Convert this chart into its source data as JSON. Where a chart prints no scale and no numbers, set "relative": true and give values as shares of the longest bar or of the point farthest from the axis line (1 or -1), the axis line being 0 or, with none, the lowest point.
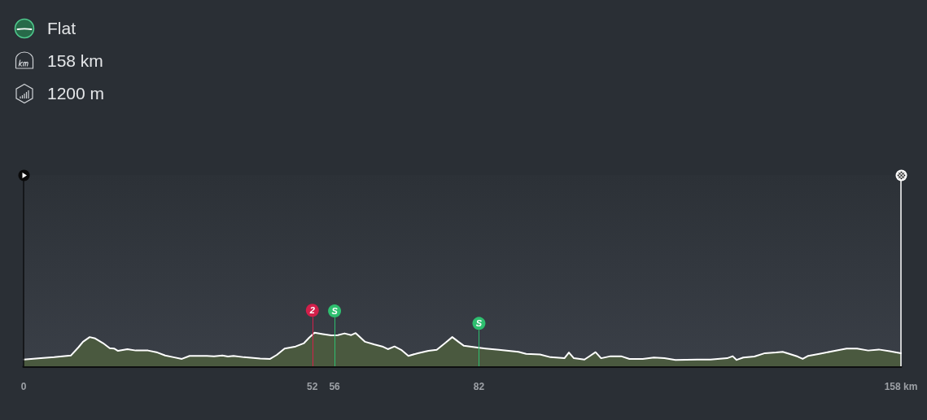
{
  "chart_data": {
    "type": "area",
    "relative": true,
    "x": [
      0,
      3.1,
      5.5,
      8.5,
      9.9,
      10.7,
      11.9,
      12.9,
      14.3,
      15.5,
      16.3,
      17.0,
      18.7,
      20.2,
      22.4,
      24.1,
      25.5,
      27.0,
      28.5,
      29.9,
      32.9,
      34.3,
      35.8,
      36.8,
      37.8,
      39.7,
      42.6,
      44.4,
      45.6,
      47.0,
      49.0,
      50.5,
      51.4,
      52.4,
      53.9,
      55.4,
      56.6,
      57.8,
      59.0,
      59.8,
      61.5,
      63.2,
      64.6,
      65.6,
      66.8,
      68.0,
      69.3,
      71.0,
      72.9,
      74.4,
      75.9,
      77.2,
      78.3,
      79.3,
      81.2,
      83.2,
      85.6,
      89.1,
      90.5,
      93.0,
      94.9,
      97.4,
      98.2,
      99.1,
      101.0,
      102.0,
      103.0,
      104.0,
      105.7,
      107.6,
      109.1,
      111.5,
      113.5,
      115.4,
      117.4,
      121.3,
      123.7,
      126.7,
      127.7,
      128.4,
      129.6,
      131.6,
      133.5,
      135.5,
      136.7,
      137.9,
      139.4,
      140.3,
      141.3,
      143.3,
      145.7,
      148.2,
      150.1,
      152.1,
      154.0,
      156.0,
      158
    ],
    "values": [
      0.2,
      0.24,
      0.27,
      0.32,
      0.57,
      0.73,
      0.87,
      0.83,
      0.69,
      0.54,
      0.53,
      0.46,
      0.51,
      0.47,
      0.47,
      0.41,
      0.32,
      0.27,
      0.22,
      0.31,
      0.31,
      0.3,
      0.32,
      0.29,
      0.31,
      0.27,
      0.23,
      0.22,
      0.34,
      0.53,
      0.59,
      0.69,
      0.85,
      1,
      0.96,
      0.92,
      0.93,
      0.98,
      0.93,
      0.99,
      0.73,
      0.65,
      0.59,
      0.51,
      0.59,
      0.49,
      0.31,
      0.39,
      0.46,
      0.49,
      0.69,
      0.87,
      0.73,
      0.61,
      0.57,
      0.53,
      0.49,
      0.43,
      0.37,
      0.35,
      0.27,
      0.24,
      0.41,
      0.24,
      0.2,
      0.31,
      0.42,
      0.24,
      0.3,
      0.3,
      0.22,
      0.22,
      0.26,
      0.24,
      0.19,
      0.2,
      0.2,
      0.24,
      0.3,
      0.19,
      0.26,
      0.29,
      0.39,
      0.41,
      0.43,
      0.37,
      0.29,
      0.22,
      0.31,
      0.37,
      0.45,
      0.53,
      0.53,
      0.47,
      0.5,
      0.45,
      0.39
    ],
    "color": "#4a593f",
    "marker": "none",
    "xlim": [
      0,
      158
    ],
    "xticks": [
      0,
      52,
      56,
      82,
      {
        "value": 158,
        "label": "158 km"
      }
    ],
    "ref_lines": [
      {
        "axis": "x",
        "value": 0,
        "color": "#0e0f10"
      },
      {
        "axis": "x",
        "value": 52,
        "color": "#d21f4a"
      },
      {
        "axis": "x",
        "value": 56,
        "color": "#2ebf6f"
      },
      {
        "axis": "x",
        "value": 82,
        "color": "#2ebf6f"
      },
      {
        "axis": "x",
        "value": 158,
        "color": "#ffffff"
      }
    ],
    "annotations": [
      "Flat",
      "158 km",
      "1200 m",
      {
        "text": "2",
        "x": 52,
        "y": 0.94
      },
      {
        "text": "S",
        "x": 56,
        "y": 0.92
      },
      {
        "text": "S",
        "x": 82,
        "y": 0.55
      }
    ]
  }
}
